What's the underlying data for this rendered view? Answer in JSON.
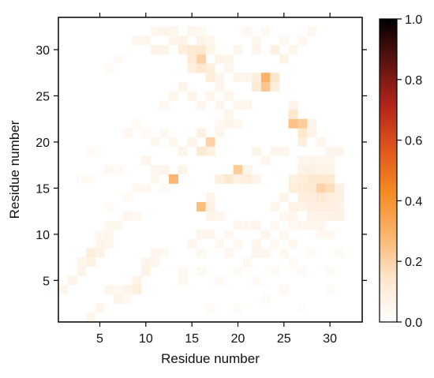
{
  "chart_data": {
    "type": "heatmap",
    "title": "",
    "xlabel": "Residue number",
    "ylabel": "Residue number",
    "x_range": [
      1,
      33
    ],
    "y_range": [
      1,
      33
    ],
    "xticks": [
      5,
      10,
      15,
      20,
      25,
      30
    ],
    "yticks": [
      5,
      10,
      15,
      20,
      25,
      30
    ],
    "colorbar": {
      "range": [
        0.0,
        1.0
      ],
      "ticks": [
        "0.0",
        "0.2",
        "0.4",
        "0.6",
        "0.8",
        "1.0"
      ],
      "colormap": [
        "#ffffff",
        "#fde6cc",
        "#fbb56e",
        "#f48a22",
        "#e0561c",
        "#b3241a",
        "#5e1310",
        "#000000"
      ]
    },
    "grid": false,
    "legend": "none",
    "cells": [
      [
        23,
        27,
        0.3
      ],
      [
        23,
        26,
        0.24
      ],
      [
        24,
        27,
        0.14
      ],
      [
        22,
        26,
        0.12
      ],
      [
        22,
        27,
        0.1
      ],
      [
        24,
        26,
        0.1
      ],
      [
        16,
        29,
        0.2
      ],
      [
        16,
        30,
        0.14
      ],
      [
        16,
        28,
        0.14
      ],
      [
        15,
        29,
        0.12
      ],
      [
        17,
        28,
        0.1
      ],
      [
        15,
        28,
        0.09
      ],
      [
        17,
        27,
        0.1
      ],
      [
        18,
        29,
        0.07
      ],
      [
        19,
        29,
        0.06
      ],
      [
        14,
        30,
        0.1
      ],
      [
        15,
        30,
        0.12
      ],
      [
        13,
        31,
        0.06
      ],
      [
        14,
        31,
        0.07
      ],
      [
        16,
        31,
        0.07
      ],
      [
        17,
        30,
        0.06
      ],
      [
        20,
        30,
        0.05
      ],
      [
        22,
        30,
        0.05
      ],
      [
        24,
        30,
        0.08
      ],
      [
        25,
        29,
        0.07
      ],
      [
        26,
        30,
        0.05
      ],
      [
        27,
        31,
        0.04
      ],
      [
        28,
        32,
        0.04
      ],
      [
        11,
        30,
        0.07
      ],
      [
        12,
        30,
        0.06
      ],
      [
        18,
        27,
        0.05
      ],
      [
        20,
        27,
        0.06
      ],
      [
        21,
        27,
        0.05
      ],
      [
        19,
        28,
        0.05
      ],
      [
        26,
        22,
        0.25
      ],
      [
        27,
        22,
        0.22
      ],
      [
        27,
        21,
        0.14
      ],
      [
        26,
        23,
        0.14
      ],
      [
        27,
        20,
        0.1
      ],
      [
        28,
        21,
        0.07
      ],
      [
        28,
        22,
        0.06
      ],
      [
        26,
        24,
        0.06
      ],
      [
        29,
        20,
        0.06
      ],
      [
        30,
        19,
        0.05
      ],
      [
        31,
        19,
        0.05
      ],
      [
        17,
        20,
        0.2
      ],
      [
        16,
        19,
        0.12
      ],
      [
        16,
        21,
        0.08
      ],
      [
        17,
        19,
        0.08
      ],
      [
        19,
        22,
        0.06
      ],
      [
        18,
        21,
        0.05
      ],
      [
        20,
        22,
        0.04
      ],
      [
        14,
        19,
        0.06
      ],
      [
        15,
        20,
        0.06
      ],
      [
        20,
        17,
        0.22
      ],
      [
        19,
        16,
        0.13
      ],
      [
        21,
        16,
        0.1
      ],
      [
        18,
        16,
        0.09
      ],
      [
        20,
        16,
        0.08
      ],
      [
        22,
        16,
        0.06
      ],
      [
        21,
        17,
        0.05
      ],
      [
        22,
        19,
        0.06
      ],
      [
        24,
        19,
        0.05
      ],
      [
        25,
        19,
        0.05
      ],
      [
        23,
        18,
        0.05
      ],
      [
        13,
        16,
        0.28
      ],
      [
        12,
        17,
        0.06
      ],
      [
        14,
        17,
        0.06
      ],
      [
        16,
        13,
        0.26
      ],
      [
        17,
        13,
        0.08
      ],
      [
        17,
        12,
        0.06
      ],
      [
        18,
        12,
        0.05
      ],
      [
        17,
        14,
        0.06
      ],
      [
        29,
        15,
        0.2
      ],
      [
        30,
        15,
        0.17
      ],
      [
        28,
        16,
        0.13
      ],
      [
        29,
        16,
        0.14
      ],
      [
        30,
        16,
        0.12
      ],
      [
        28,
        15,
        0.12
      ],
      [
        27,
        16,
        0.1
      ],
      [
        27,
        15,
        0.11
      ],
      [
        26,
        15,
        0.1
      ],
      [
        29,
        14,
        0.12
      ],
      [
        30,
        14,
        0.1
      ],
      [
        31,
        14,
        0.08
      ],
      [
        29,
        13,
        0.09
      ],
      [
        30,
        13,
        0.09
      ],
      [
        28,
        13,
        0.09
      ],
      [
        27,
        13,
        0.07
      ],
      [
        31,
        12,
        0.08
      ],
      [
        30,
        12,
        0.07
      ],
      [
        29,
        12,
        0.07
      ],
      [
        28,
        12,
        0.06
      ],
      [
        28,
        14,
        0.1
      ],
      [
        27,
        14,
        0.09
      ],
      [
        26,
        13,
        0.07
      ],
      [
        25,
        14,
        0.06
      ],
      [
        31,
        15,
        0.08
      ],
      [
        31,
        13,
        0.07
      ],
      [
        26,
        16,
        0.08
      ],
      [
        27,
        17,
        0.07
      ],
      [
        28,
        17,
        0.08
      ],
      [
        29,
        17,
        0.07
      ],
      [
        30,
        17,
        0.06
      ],
      [
        28,
        18,
        0.06
      ],
      [
        29,
        18,
        0.05
      ],
      [
        27,
        18,
        0.05
      ],
      [
        30,
        18,
        0.05
      ],
      [
        29,
        11,
        0.05
      ],
      [
        28,
        11,
        0.05
      ],
      [
        27,
        11,
        0.05
      ],
      [
        30,
        10,
        0.04
      ],
      [
        29,
        10,
        0.04
      ],
      [
        26,
        12,
        0.05
      ],
      [
        25,
        12,
        0.04
      ],
      [
        24,
        13,
        0.05
      ],
      [
        26,
        11,
        0.04
      ],
      [
        4,
        8,
        0.1
      ],
      [
        4,
        7,
        0.08
      ],
      [
        5,
        8,
        0.07
      ],
      [
        5,
        9,
        0.06
      ],
      [
        6,
        9,
        0.05
      ],
      [
        6,
        10,
        0.05
      ],
      [
        7,
        11,
        0.04
      ],
      [
        3,
        7,
        0.06
      ],
      [
        3,
        6,
        0.06
      ],
      [
        2,
        5,
        0.06
      ],
      [
        1,
        4,
        0.05
      ],
      [
        5,
        10,
        0.04
      ],
      [
        6,
        11,
        0.04
      ],
      [
        8,
        12,
        0.05
      ],
      [
        9,
        12,
        0.04
      ],
      [
        9,
        4,
        0.1
      ],
      [
        9,
        5,
        0.07
      ],
      [
        10,
        6,
        0.07
      ],
      [
        10,
        7,
        0.06
      ],
      [
        8,
        4,
        0.06
      ],
      [
        7,
        3,
        0.06
      ],
      [
        6,
        4,
        0.05
      ],
      [
        5,
        2,
        0.05
      ],
      [
        4,
        1,
        0.05
      ],
      [
        11,
        7,
        0.05
      ],
      [
        11,
        8,
        0.05
      ],
      [
        12,
        8,
        0.04
      ],
      [
        8,
        3,
        0.04
      ],
      [
        7,
        4,
        0.04
      ],
      [
        8,
        21,
        0.04
      ],
      [
        9,
        22,
        0.03
      ],
      [
        4,
        19,
        0.03
      ],
      [
        10,
        18,
        0.05
      ],
      [
        11,
        17,
        0.05
      ],
      [
        6,
        17,
        0.04
      ],
      [
        7,
        17,
        0.03
      ],
      [
        3,
        16,
        0.03
      ],
      [
        4,
        16,
        0.03
      ],
      [
        11,
        20,
        0.04
      ],
      [
        12,
        21,
        0.04
      ],
      [
        13,
        20,
        0.04
      ],
      [
        10,
        21,
        0.03
      ],
      [
        6,
        28,
        0.03
      ],
      [
        7,
        29,
        0.03
      ],
      [
        9,
        31,
        0.05
      ],
      [
        10,
        31,
        0.05
      ],
      [
        11,
        32,
        0.04
      ],
      [
        12,
        32,
        0.06
      ],
      [
        13,
        32,
        0.05
      ],
      [
        15,
        32,
        0.05
      ],
      [
        16,
        32,
        0.04
      ],
      [
        17,
        31,
        0.05
      ],
      [
        21,
        32,
        0.04
      ],
      [
        22,
        31,
        0.04
      ],
      [
        23,
        32,
        0.04
      ],
      [
        25,
        31,
        0.04
      ],
      [
        17,
        25,
        0.05
      ],
      [
        18,
        24,
        0.05
      ],
      [
        16,
        24,
        0.05
      ],
      [
        15,
        25,
        0.06
      ],
      [
        14,
        26,
        0.06
      ],
      [
        13,
        25,
        0.05
      ],
      [
        18,
        26,
        0.05
      ],
      [
        19,
        25,
        0.05
      ],
      [
        20,
        24,
        0.05
      ],
      [
        21,
        24,
        0.05
      ],
      [
        12,
        24,
        0.04
      ],
      [
        19,
        23,
        0.05
      ],
      [
        18,
        22,
        0.04
      ],
      [
        15,
        9,
        0.05
      ],
      [
        16,
        10,
        0.05
      ],
      [
        17,
        10,
        0.05
      ],
      [
        18,
        9,
        0.04
      ],
      [
        19,
        10,
        0.04
      ],
      [
        20,
        11,
        0.05
      ],
      [
        21,
        11,
        0.04
      ],
      [
        22,
        11,
        0.05
      ],
      [
        20,
        9,
        0.04
      ],
      [
        19,
        8,
        0.04
      ],
      [
        16,
        8,
        0.04
      ],
      [
        21,
        7,
        0.04
      ],
      [
        22,
        8,
        0.05
      ],
      [
        23,
        8,
        0.05
      ],
      [
        24,
        9,
        0.04
      ],
      [
        23,
        10,
        0.05
      ],
      [
        22,
        9,
        0.05
      ],
      [
        24,
        11,
        0.04
      ],
      [
        25,
        10,
        0.04
      ],
      [
        25,
        8,
        0.04
      ],
      [
        26,
        9,
        0.04
      ],
      [
        14,
        5,
        0.04
      ],
      [
        14,
        6,
        0.04
      ],
      [
        16,
        6,
        0.04
      ],
      [
        18,
        5,
        0.03
      ],
      [
        20,
        6,
        0.03
      ],
      [
        22,
        5,
        0.03
      ],
      [
        24,
        6,
        0.03
      ],
      [
        25,
        4,
        0.03
      ],
      [
        27,
        6,
        0.03
      ],
      [
        28,
        8,
        0.03
      ],
      [
        30,
        6,
        0.03
      ],
      [
        31,
        8,
        0.03
      ],
      [
        26,
        7,
        0.03
      ],
      [
        17,
        2,
        0.03
      ],
      [
        20,
        2,
        0.02
      ],
      [
        23,
        3,
        0.02
      ],
      [
        27,
        2,
        0.02
      ],
      [
        30,
        4,
        0.02
      ],
      [
        6,
        13,
        0.03
      ],
      [
        8,
        14,
        0.03
      ],
      [
        9,
        15,
        0.04
      ],
      [
        10,
        15,
        0.04
      ],
      [
        11,
        16,
        0.04
      ],
      [
        12,
        15,
        0.03
      ]
    ]
  }
}
